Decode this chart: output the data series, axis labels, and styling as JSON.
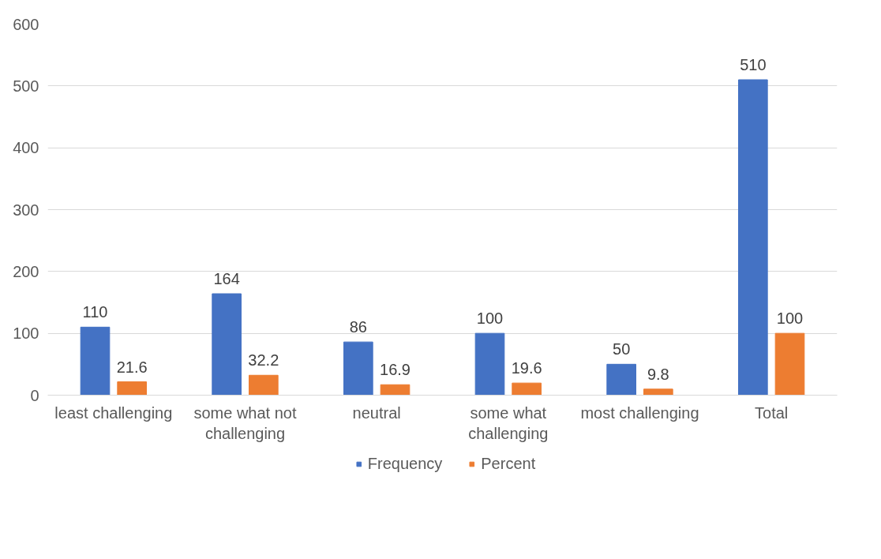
{
  "chart_data": {
    "type": "bar",
    "categories": [
      "least challenging",
      "some what not challenging",
      "neutral",
      "some what challenging",
      "most challenging",
      "Total"
    ],
    "series": [
      {
        "name": "Frequency",
        "color": "#4472c4",
        "values": [
          110,
          164,
          86,
          100,
          50,
          510
        ]
      },
      {
        "name": "Percent",
        "color": "#ed7d31",
        "values": [
          21.6,
          32.2,
          16.9,
          19.6,
          9.8,
          100
        ]
      }
    ],
    "ylim": [
      0,
      600
    ],
    "yticks": [
      0,
      100,
      200,
      300,
      400,
      500,
      600
    ],
    "grid": "y",
    "legend": "bottom",
    "data_labels": true
  }
}
